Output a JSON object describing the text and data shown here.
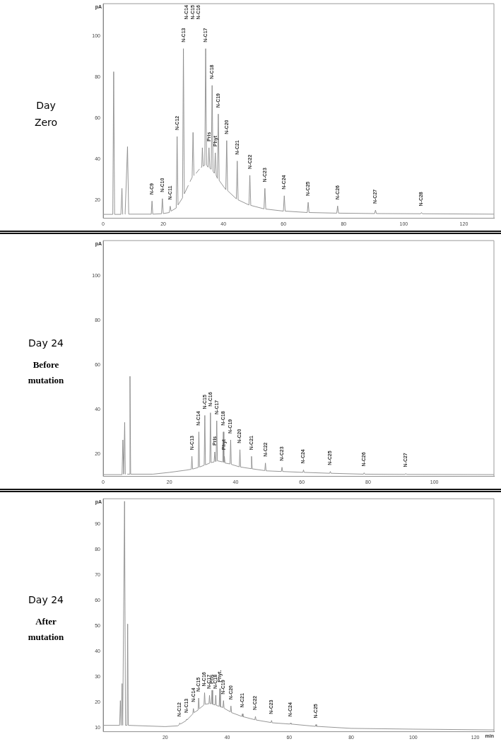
{
  "chart_data": [
    {
      "type": "line",
      "title": "Day Zero",
      "ylabel": "pA",
      "xlim": [
        0,
        130
      ],
      "ylim": [
        11,
        116
      ],
      "xticks": [
        0,
        20,
        40,
        60,
        80,
        100,
        120
      ],
      "yticks": [
        20,
        40,
        60,
        80,
        100
      ],
      "marker": "none",
      "line_style": "solid",
      "series": [
        {
          "color": "#8a8a8a",
          "x": [
            0,
            3.2,
            3.5,
            3.8,
            5.9,
            6.25,
            6.5,
            6.9,
            7.3,
            8.1,
            8.5,
            16,
            16.25,
            16.5,
            19.4,
            19.7,
            20,
            22,
            22.3,
            22.6,
            24.3,
            24.6,
            24.9,
            26.4,
            26.7,
            27,
            28.3,
            28.6,
            28.9,
            29.6,
            29.9,
            30.2,
            30.3,
            30.6,
            30.9,
            32,
            32.3,
            32.6,
            32.8,
            33,
            33.3,
            33.8,
            34.1,
            34.4,
            34.9,
            35.2,
            35.5,
            35.95,
            36.25,
            36.55,
            37,
            37.3,
            37.6,
            38,
            38.3,
            38.6,
            40.8,
            41.1,
            41.4,
            44.3,
            44.6,
            44.9,
            48.5,
            48.8,
            49.1,
            53.5,
            53.8,
            54.1,
            59.95,
            60.25,
            60.55,
            67.9,
            68.2,
            68.5,
            77.7,
            78,
            78.3,
            90.3,
            90.6,
            90.9,
            105.6,
            105.9,
            106.2,
            130
          ],
          "values": [
            12.9,
            12.9,
            82.7,
            12.9,
            12.9,
            25.6,
            13,
            null,
            13,
            46,
            13,
            13,
            19.4,
            13,
            13.2,
            20.6,
            13.3,
            13.8,
            16.9,
            14.5,
            16,
            51,
            17.5,
            21,
            94,
            23,
            27,
            null,
            29,
            31,
            53,
            32,
            32,
            null,
            33,
            35,
            null,
            36,
            36,
            45.5,
            36.5,
            37,
            94,
            37,
            36,
            45.5,
            35.5,
            35,
            76,
            34,
            33,
            43,
            32,
            30.5,
            62,
            29.5,
            25,
            49,
            24.5,
            20.5,
            39,
            20,
            17.5,
            32,
            17.3,
            15.6,
            25.6,
            15.5,
            14.5,
            22,
            14.5,
            13.8,
            18.8,
            13.8,
            13.5,
            17,
            13.5,
            13.3,
            15,
            13.3,
            13.2,
            13.8,
            13.2,
            13
          ]
        }
      ],
      "annotations": [
        {
          "text": "N-C9",
          "x": 16.25,
          "y": 19.4
        },
        {
          "text": "N-C10",
          "x": 19.7,
          "y": 20.6
        },
        {
          "text": "N-C11",
          "x": 22.3,
          "y": 16.9
        },
        {
          "text": "N-C12",
          "x": 24.6,
          "y": 51
        },
        {
          "text": "N-C13",
          "x": 26.7,
          "y": 94
        },
        "N-C14",
        "N-C15",
        "N-C16",
        {
          "text": "N-C17",
          "x": 34.1,
          "y": 94
        },
        {
          "text": "Pris",
          "x": 35.2,
          "y": 45.5
        },
        {
          "text": "N-C18",
          "x": 36.25,
          "y": 76
        },
        {
          "text": "Phyt",
          "x": 37.3,
          "y": 43
        },
        {
          "text": "N-C19",
          "x": 38.3,
          "y": 62
        },
        {
          "text": "N-C20",
          "x": 41.1,
          "y": 49
        },
        {
          "text": "N-C21",
          "x": 44.6,
          "y": 39
        },
        {
          "text": "N-C22",
          "x": 48.8,
          "y": 32
        },
        {
          "text": "N-C23",
          "x": 53.8,
          "y": 25.6
        },
        {
          "text": "N-C24",
          "x": 60.25,
          "y": 22
        },
        {
          "text": "N-C25",
          "x": 68.2,
          "y": 18.8
        },
        {
          "text": "N-C26",
          "x": 78,
          "y": 17
        },
        {
          "text": "N-C27",
          "x": 90.6,
          "y": 15
        },
        {
          "text": "N-C28",
          "x": 105.9,
          "y": 13.8
        }
      ]
    },
    {
      "type": "line",
      "title": "Day 24",
      "subtitle": "Before mutation",
      "ylabel": "pA",
      "xlim": [
        0,
        118
      ],
      "ylim": [
        10,
        116
      ],
      "xticks": [
        0,
        20,
        40,
        60,
        80,
        100
      ],
      "yticks": [
        20,
        40,
        60,
        80,
        100
      ],
      "marker": "none",
      "line_style": "solid",
      "series": [
        {
          "color": "#8a8a8a",
          "x": [
            0,
            5.7,
            5.95,
            6.2,
            6.3,
            6.5,
            6.7,
            7,
            7.3,
            7.9,
            8.1,
            8.3,
            15,
            20,
            25,
            26.6,
            26.8,
            27,
            28.7,
            28.9,
            29.1,
            30.5,
            30.7,
            30.9,
            32.2,
            32.4,
            32.6,
            33.5,
            33.7,
            33.9,
            34.1,
            34.3,
            34.5,
            36.1,
            36.3,
            36.45,
            36.6,
            36.8,
            38.3,
            38.5,
            38.7,
            41.1,
            41.3,
            41.5,
            44.6,
            44.8,
            45,
            48.8,
            49,
            49.2,
            53.8,
            54,
            54.2,
            60.3,
            60.5,
            60.7,
            68.4,
            68.6,
            68.8,
            78.6,
            78.8,
            79,
            91.2,
            91.4,
            91.6,
            118
          ],
          "values": [
            10.8,
            10.8,
            26.4,
            11,
            11,
            34.3,
            11,
            null,
            11,
            11,
            55,
            11,
            11,
            11.8,
            12.8,
            13.2,
            19,
            13.3,
            14,
            30,
            14.2,
            15,
            37.4,
            15.2,
            16,
            38.6,
            16.2,
            16.5,
            21,
            16.7,
            16.8,
            35,
            17,
            16.5,
            30,
            16.3,
            19,
            16,
            15.6,
            26.4,
            15.4,
            14.3,
            22,
            14.2,
            13.5,
            19,
            13.4,
            12.6,
            16,
            12.5,
            12.2,
            14.1,
            12.2,
            11.8,
            12.9,
            11.8,
            11.4,
            12.2,
            11.4,
            11,
            11.6,
            11,
            10.9,
            11.3,
            10.9,
            10.8
          ]
        }
      ],
      "annotations": [
        {
          "text": "N-C13",
          "x": 26.8,
          "y": 19
        },
        {
          "text": "N-C14",
          "x": 28.9,
          "y": 30
        },
        {
          "text": "N-C15",
          "x": 30.7,
          "y": 37.4
        },
        {
          "text": "N-C16",
          "x": 32.4,
          "y": 38.6
        },
        {
          "text": "Pris",
          "x": 33.7,
          "y": 21
        },
        {
          "text": "N-C17",
          "x": 34.3,
          "y": 35
        },
        {
          "text": "N-C18",
          "x": 36.3,
          "y": 30
        },
        {
          "text": "Phyt",
          "x": 36.6,
          "y": 19
        },
        {
          "text": "N-C19",
          "x": 38.5,
          "y": 26.4
        },
        {
          "text": "N-C20",
          "x": 41.3,
          "y": 22
        },
        {
          "text": "N-C21",
          "x": 44.8,
          "y": 19
        },
        {
          "text": "N-C22",
          "x": 49,
          "y": 16
        },
        {
          "text": "N-C23",
          "x": 54,
          "y": 14.1
        },
        {
          "text": "N-C24",
          "x": 60.5,
          "y": 12.9
        },
        {
          "text": "N-C25",
          "x": 68.6,
          "y": 12.2
        },
        {
          "text": "N-C26",
          "x": 78.8,
          "y": 11.6
        },
        {
          "text": "N-C27",
          "x": 91.4,
          "y": 11.3
        }
      ]
    },
    {
      "type": "line",
      "title": "Day 24",
      "subtitle": "After mutation",
      "ylabel": "pA",
      "xlabel": "min",
      "xlim": [
        0,
        126
      ],
      "ylim": [
        8.5,
        100
      ],
      "xticks": [
        20,
        40,
        60,
        80,
        100,
        120
      ],
      "yticks": [
        10,
        20,
        30,
        40,
        50,
        60,
        70,
        80,
        90
      ],
      "marker": "none",
      "line_style": "solid",
      "series": [
        {
          "color": "#8a8a8a",
          "x": [
            0,
            5.3,
            5.55,
            5.8,
            5.9,
            6.1,
            6.3,
            6.9,
            7.2,
            7.7,
            7.9,
            8.1,
            20,
            24,
            24.5,
            24.7,
            24.9,
            26.7,
            26.9,
            27.1,
            28.9,
            29.1,
            29.3,
            30.6,
            30.8,
            31,
            32.5,
            32.7,
            32.9,
            34.1,
            34.3,
            34.5,
            34.9,
            35.1,
            35.3,
            36.1,
            36.3,
            36.5,
            37.4,
            37.6,
            37.8,
            38.6,
            38.8,
            39,
            41,
            41.2,
            41.4,
            44.7,
            44.9,
            45.1,
            48.9,
            49.1,
            49.3,
            54.1,
            54.3,
            54.5,
            60.2,
            60.4,
            60.6,
            68.4,
            68.6,
            68.8,
            80,
            100,
            126
          ],
          "values": [
            11,
            11,
            20.7,
            11,
            11,
            27.4,
            11,
            99,
            11,
            11,
            50.8,
            11,
            10.5,
            10.8,
            11.2,
            11.9,
            11.5,
            12.8,
            13.4,
            13.2,
            15.5,
            17.6,
            16,
            17,
            21.7,
            17.5,
            19,
            23.8,
            19.3,
            19.5,
            22.8,
            19.5,
            19.5,
            24.8,
            19.3,
            19,
            22.8,
            18.8,
            18.5,
            25.4,
            18.3,
            18,
            20.7,
            17.7,
            16.3,
            18.6,
            16,
            14.5,
            15.5,
            14.4,
            13.2,
            14.5,
            13.1,
            12.1,
            12.9,
            12,
            11.5,
            11.9,
            11.5,
            10.6,
            11.3,
            10.6,
            9.8,
            9.5,
            9.2
          ]
        }
      ],
      "annotations": [
        {
          "text": "N-C12",
          "x": 24.7,
          "y": 11.9
        },
        {
          "text": "N-C13",
          "x": 26.9,
          "y": 13.4
        },
        {
          "text": "N-C14",
          "x": 29.1,
          "y": 17.6
        },
        {
          "text": "N-C15",
          "x": 30.8,
          "y": 21.7
        },
        {
          "text": "N-C16",
          "x": 32.7,
          "y": 23.8
        },
        {
          "text": "N-C17",
          "x": 34.3,
          "y": 22.8
        },
        {
          "text": "Pris",
          "x": 35.1,
          "y": 24.8
        },
        {
          "text": "N-C18",
          "x": 36.3,
          "y": 22.8
        },
        {
          "text": "Phyt.",
          "x": 37.6,
          "y": 25.4
        },
        {
          "text": "N-C19",
          "x": 38.8,
          "y": 20.7
        },
        {
          "text": "N-C20",
          "x": 41.2,
          "y": 18.6
        },
        {
          "text": "N-C21",
          "x": 44.9,
          "y": 15.5
        },
        {
          "text": "N-C22",
          "x": 49.1,
          "y": 14.5
        },
        {
          "text": "N-C23",
          "x": 54.3,
          "y": 12.9
        },
        {
          "text": "N-C24",
          "x": 60.4,
          "y": 11.9
        },
        {
          "text": "N-C25",
          "x": 68.6,
          "y": 11.3
        }
      ]
    }
  ]
}
